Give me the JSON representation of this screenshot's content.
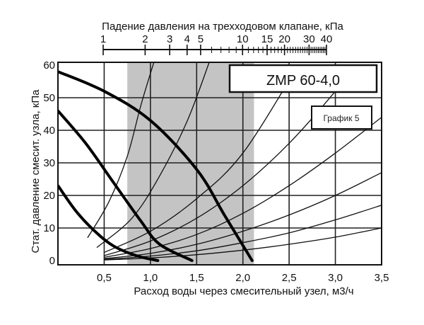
{
  "chart_data": {
    "type": "line",
    "title": "ZMP 60-4,0",
    "subtitle": "График 5",
    "top_axis": {
      "label": "Падение давления на трехходовом клапане, кПа",
      "tick_labels": [
        "1",
        "2",
        "3",
        "4",
        "5",
        "10",
        "15",
        "20",
        "30",
        "40"
      ],
      "tick_values": [
        1,
        2,
        3,
        4,
        5,
        10,
        15,
        20,
        30,
        40
      ],
      "minor_tick_values": [
        6,
        7,
        8,
        9,
        11,
        12,
        13,
        14,
        16,
        17,
        18,
        19,
        21,
        22,
        23,
        24,
        25,
        26,
        27,
        28,
        29,
        31,
        32,
        33,
        34,
        35,
        36,
        37,
        38,
        39
      ]
    },
    "xlabel": "Расход воды через смесительный узел, м3/ч",
    "ylabel": "Стат. давление смесит. узла, кПа",
    "x_tick_labels": [
      "0,5",
      "1,0",
      "1,5",
      "2,0",
      "2,5",
      "3,0",
      "3,5"
    ],
    "x_tick_values": [
      0.5,
      1.0,
      1.5,
      2.0,
      2.5,
      3.0,
      3.5
    ],
    "y_tick_labels": [
      "0",
      "10",
      "20",
      "30",
      "40",
      "50",
      "60"
    ],
    "y_tick_values": [
      0,
      10,
      20,
      30,
      40,
      50,
      60
    ],
    "xlim": [
      0,
      3.5
    ],
    "ylim": [
      0,
      60
    ],
    "grid": true,
    "shaded_band_x": [
      0.75,
      2.12
    ],
    "pump_curves": [
      {
        "points": [
          [
            0,
            58
          ],
          [
            0.5,
            52
          ],
          [
            1.0,
            43
          ],
          [
            1.5,
            28
          ],
          [
            1.8,
            14
          ],
          [
            2.1,
            0
          ]
        ]
      },
      {
        "points": [
          [
            0,
            46
          ],
          [
            0.3,
            36
          ],
          [
            0.6,
            24
          ],
          [
            0.9,
            12
          ],
          [
            1.1,
            5
          ],
          [
            1.45,
            0
          ]
        ]
      },
      {
        "points": [
          [
            0,
            23
          ],
          [
            0.2,
            15
          ],
          [
            0.4,
            9
          ],
          [
            0.6,
            4.5
          ],
          [
            0.85,
            1.5
          ],
          [
            1.08,
            0
          ]
        ]
      }
    ],
    "valve_curves": [
      {
        "points": [
          [
            0.32,
            7
          ],
          [
            0.55,
            18
          ],
          [
            0.75,
            32
          ],
          [
            0.9,
            48
          ],
          [
            1.05,
            62
          ]
        ]
      },
      {
        "points": [
          [
            0.42,
            4
          ],
          [
            0.8,
            13
          ],
          [
            1.1,
            26
          ],
          [
            1.4,
            43
          ],
          [
            1.65,
            62
          ]
        ]
      },
      {
        "points": [
          [
            0.5,
            2.5
          ],
          [
            1.0,
            9
          ],
          [
            1.5,
            19
          ],
          [
            2.0,
            33
          ],
          [
            2.6,
            60
          ]
        ]
      },
      {
        "points": [
          [
            0.5,
            1.5
          ],
          [
            1.0,
            6
          ],
          [
            1.5,
            13
          ],
          [
            2.0,
            23
          ],
          [
            2.5,
            36
          ],
          [
            3.0,
            52
          ],
          [
            3.15,
            58
          ]
        ]
      },
      {
        "points": [
          [
            0.5,
            1
          ],
          [
            1.0,
            3.7
          ],
          [
            1.5,
            8
          ],
          [
            2.0,
            14.5
          ],
          [
            2.5,
            23
          ],
          [
            3.0,
            33
          ],
          [
            3.5,
            44
          ]
        ]
      },
      {
        "points": [
          [
            0.5,
            0.6
          ],
          [
            1.0,
            2.2
          ],
          [
            1.5,
            5
          ],
          [
            2.0,
            9
          ],
          [
            2.5,
            14
          ],
          [
            3.0,
            20
          ],
          [
            3.5,
            27
          ]
        ]
      },
      {
        "points": [
          [
            0.5,
            0.4
          ],
          [
            1.0,
            1.4
          ],
          [
            1.5,
            3
          ],
          [
            2.0,
            5.5
          ],
          [
            2.5,
            8.5
          ],
          [
            3.0,
            12.5
          ],
          [
            3.5,
            17
          ]
        ]
      },
      {
        "points": [
          [
            0.5,
            0.2
          ],
          [
            1.0,
            0.8
          ],
          [
            1.5,
            1.8
          ],
          [
            2.0,
            3.2
          ],
          [
            2.5,
            5
          ],
          [
            3.0,
            7.2
          ],
          [
            3.5,
            10
          ]
        ]
      }
    ]
  }
}
